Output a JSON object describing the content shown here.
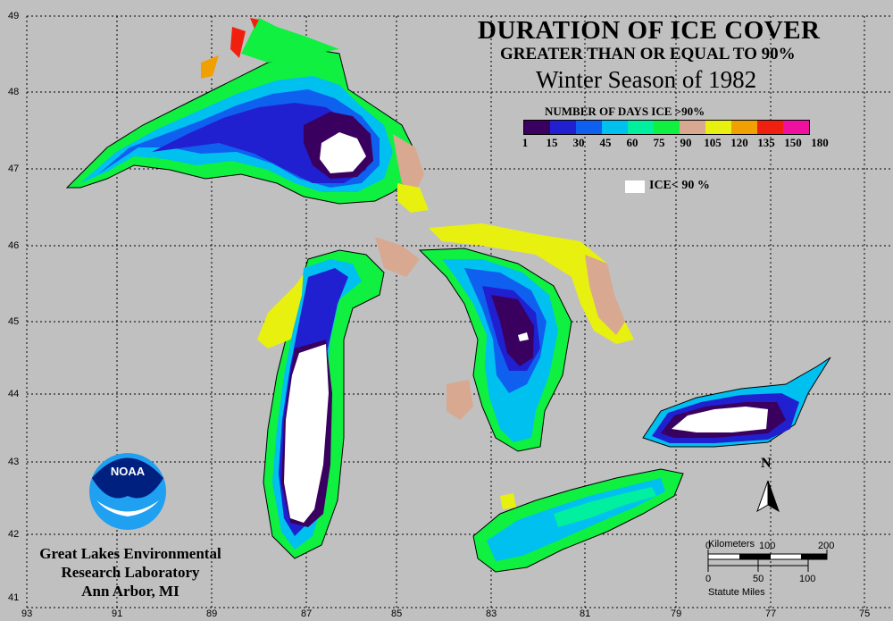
{
  "title": {
    "line1": "DURATION OF ICE COVER",
    "line2": "GREATER THAN OR EQUAL TO 90%",
    "line3": "Winter Season of 1982"
  },
  "legend": {
    "title": "NUMBER OF DAYS ICE >90%",
    "colors": [
      "#3a0060",
      "#2020d0",
      "#1060f0",
      "#00c0f0",
      "#00f0a0",
      "#10f040",
      "#d8a890",
      "#e8f010",
      "#f0a000",
      "#f02010",
      "#f010a0"
    ],
    "ticks": [
      "1",
      "15",
      "30",
      "45",
      "60",
      "75",
      "90",
      "105",
      "120",
      "135",
      "150",
      "180"
    ],
    "ice_label": "ICE< 90 %",
    "ice_color": "#ffffff"
  },
  "axes": {
    "latitudes": [
      "49",
      "48",
      "47",
      "46",
      "45",
      "44",
      "43",
      "42",
      "41"
    ],
    "longitudes": [
      "93",
      "91",
      "89",
      "87",
      "85",
      "83",
      "81",
      "79",
      "77",
      "75"
    ]
  },
  "lab": {
    "line1": "Great Lakes Environmental",
    "line2": "Research Laboratory",
    "line3": "Ann Arbor, MI",
    "logo_text": "NOAA"
  },
  "north": {
    "label": "N"
  },
  "scale": {
    "km_label": "Kilometers",
    "km_ticks": [
      "0",
      "100",
      "200"
    ],
    "mi_ticks": [
      "0",
      "50",
      "100"
    ],
    "mi_label": "Statute Miles"
  },
  "colors": {
    "background": "#c0c0c0"
  }
}
